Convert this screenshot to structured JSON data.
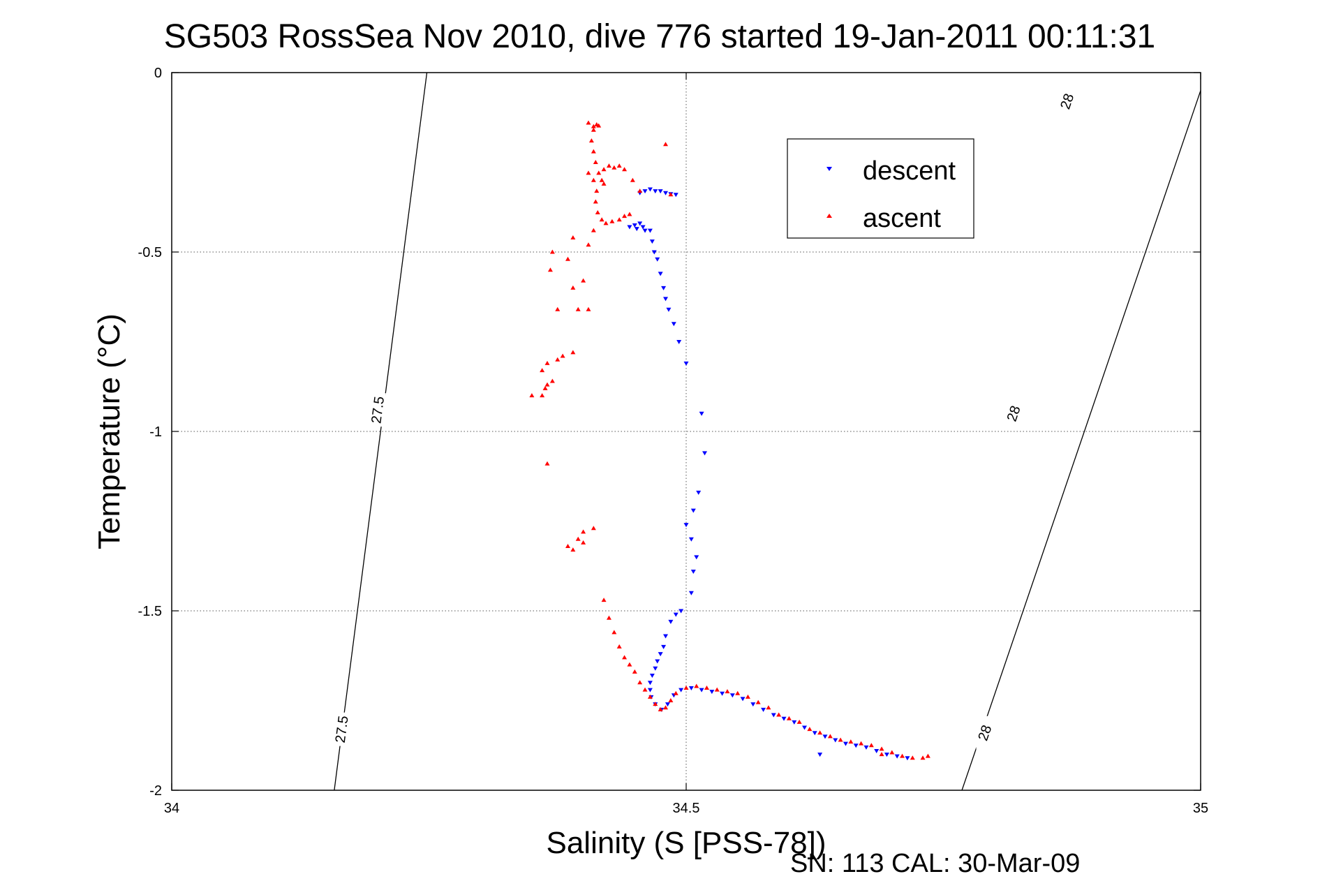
{
  "chart_data": {
    "type": "scatter",
    "title": "SG503 RossSea Nov 2010, dive 776 started 19-Jan-2011 00:11:31",
    "xlabel": "Salinity (S [PSS-78])",
    "ylabel": "Temperature (°C)",
    "xlim": [
      34,
      35
    ],
    "ylim": [
      -2,
      0
    ],
    "xticks": [
      34,
      34.5,
      35
    ],
    "xtick_labels": [
      "34",
      "34.5",
      "35"
    ],
    "yticks": [
      0,
      -0.5,
      -1,
      -1.5,
      -2
    ],
    "ytick_labels": [
      "0",
      "-0.5",
      "-1",
      "-1.5",
      "-2"
    ],
    "grid": true,
    "legend_position": "top-right",
    "footer": "SN: 113  CAL: 30-Mar-09",
    "density_contours": [
      {
        "label": "27.5",
        "points": [
          [
            34.248,
            0
          ],
          [
            34.158,
            -2
          ]
        ],
        "label_positions": [
          [
            34.2,
            -0.94
          ],
          [
            34.165,
            -1.83
          ]
        ]
      },
      {
        "label": "28",
        "points": [
          [
            35.0,
            -0.05
          ],
          [
            34.768,
            -2
          ]
        ],
        "label_positions": [
          [
            34.87,
            -0.08
          ],
          [
            34.818,
            -0.95
          ],
          [
            34.79,
            -1.84
          ]
        ]
      }
    ],
    "series": [
      {
        "name": "descent",
        "color": "#0000ff",
        "marker": "triangle-down",
        "points": [
          [
            34.455,
            -0.335
          ],
          [
            34.46,
            -0.33
          ],
          [
            34.465,
            -0.325
          ],
          [
            34.47,
            -0.33
          ],
          [
            34.475,
            -0.33
          ],
          [
            34.48,
            -0.335
          ],
          [
            34.485,
            -0.338
          ],
          [
            34.49,
            -0.34
          ],
          [
            34.445,
            -0.43
          ],
          [
            34.45,
            -0.425
          ],
          [
            34.452,
            -0.435
          ],
          [
            34.455,
            -0.42
          ],
          [
            34.458,
            -0.43
          ],
          [
            34.46,
            -0.44
          ],
          [
            34.465,
            -0.44
          ],
          [
            34.467,
            -0.47
          ],
          [
            34.469,
            -0.5
          ],
          [
            34.472,
            -0.52
          ],
          [
            34.475,
            -0.56
          ],
          [
            34.478,
            -0.6
          ],
          [
            34.48,
            -0.63
          ],
          [
            34.483,
            -0.66
          ],
          [
            34.488,
            -0.7
          ],
          [
            34.493,
            -0.75
          ],
          [
            34.5,
            -0.81
          ],
          [
            34.515,
            -0.95
          ],
          [
            34.518,
            -1.06
          ],
          [
            34.512,
            -1.17
          ],
          [
            34.507,
            -1.22
          ],
          [
            34.5,
            -1.26
          ],
          [
            34.505,
            -1.3
          ],
          [
            34.51,
            -1.35
          ],
          [
            34.507,
            -1.39
          ],
          [
            34.505,
            -1.45
          ],
          [
            34.495,
            -1.5
          ],
          [
            34.49,
            -1.51
          ],
          [
            34.485,
            -1.53
          ],
          [
            34.48,
            -1.57
          ],
          [
            34.478,
            -1.6
          ],
          [
            34.475,
            -1.62
          ],
          [
            34.472,
            -1.64
          ],
          [
            34.47,
            -1.66
          ],
          [
            34.467,
            -1.68
          ],
          [
            34.465,
            -1.7
          ],
          [
            34.465,
            -1.72
          ],
          [
            34.466,
            -1.74
          ],
          [
            34.47,
            -1.76
          ],
          [
            34.476,
            -1.775
          ],
          [
            34.482,
            -1.76
          ],
          [
            34.488,
            -1.735
          ],
          [
            34.495,
            -1.72
          ],
          [
            34.505,
            -1.715
          ],
          [
            34.515,
            -1.72
          ],
          [
            34.525,
            -1.725
          ],
          [
            34.535,
            -1.73
          ],
          [
            34.545,
            -1.735
          ],
          [
            34.555,
            -1.745
          ],
          [
            34.565,
            -1.76
          ],
          [
            34.575,
            -1.775
          ],
          [
            34.585,
            -1.79
          ],
          [
            34.595,
            -1.8
          ],
          [
            34.605,
            -1.81
          ],
          [
            34.615,
            -1.825
          ],
          [
            34.625,
            -1.84
          ],
          [
            34.635,
            -1.85
          ],
          [
            34.645,
            -1.86
          ],
          [
            34.655,
            -1.87
          ],
          [
            34.665,
            -1.875
          ],
          [
            34.675,
            -1.88
          ],
          [
            34.685,
            -1.89
          ],
          [
            34.695,
            -1.9
          ],
          [
            34.705,
            -1.905
          ],
          [
            34.715,
            -1.91
          ],
          [
            34.63,
            -1.9
          ]
        ]
      },
      {
        "name": "ascent",
        "color": "#ff0000",
        "marker": "triangle-up",
        "points": [
          [
            34.405,
            -0.14
          ],
          [
            34.41,
            -0.15
          ],
          [
            34.413,
            -0.145
          ],
          [
            34.415,
            -0.148
          ],
          [
            34.41,
            -0.16
          ],
          [
            34.408,
            -0.19
          ],
          [
            34.41,
            -0.22
          ],
          [
            34.412,
            -0.25
          ],
          [
            34.415,
            -0.28
          ],
          [
            34.418,
            -0.3
          ],
          [
            34.42,
            -0.31
          ],
          [
            34.41,
            -0.3
          ],
          [
            34.405,
            -0.28
          ],
          [
            34.413,
            -0.33
          ],
          [
            34.412,
            -0.36
          ],
          [
            34.414,
            -0.39
          ],
          [
            34.418,
            -0.41
          ],
          [
            34.422,
            -0.42
          ],
          [
            34.428,
            -0.415
          ],
          [
            34.435,
            -0.41
          ],
          [
            34.44,
            -0.4
          ],
          [
            34.445,
            -0.395
          ],
          [
            34.42,
            -0.27
          ],
          [
            34.425,
            -0.26
          ],
          [
            34.43,
            -0.265
          ],
          [
            34.435,
            -0.26
          ],
          [
            34.44,
            -0.27
          ],
          [
            34.448,
            -0.3
          ],
          [
            34.455,
            -0.33
          ],
          [
            34.48,
            -0.2
          ],
          [
            34.485,
            -0.34
          ],
          [
            34.41,
            -0.44
          ],
          [
            34.405,
            -0.48
          ],
          [
            34.39,
            -0.46
          ],
          [
            34.37,
            -0.5
          ],
          [
            34.368,
            -0.55
          ],
          [
            34.385,
            -0.52
          ],
          [
            34.4,
            -0.58
          ],
          [
            34.39,
            -0.6
          ],
          [
            34.395,
            -0.66
          ],
          [
            34.375,
            -0.66
          ],
          [
            34.405,
            -0.66
          ],
          [
            34.39,
            -0.78
          ],
          [
            34.38,
            -0.79
          ],
          [
            34.375,
            -0.8
          ],
          [
            34.365,
            -0.81
          ],
          [
            34.36,
            -0.83
          ],
          [
            34.37,
            -0.86
          ],
          [
            34.365,
            -0.87
          ],
          [
            34.363,
            -0.88
          ],
          [
            34.36,
            -0.9
          ],
          [
            34.35,
            -0.9
          ],
          [
            34.365,
            -1.09
          ],
          [
            34.395,
            -1.3
          ],
          [
            34.385,
            -1.32
          ],
          [
            34.4,
            -1.28
          ],
          [
            34.41,
            -1.27
          ],
          [
            34.4,
            -1.31
          ],
          [
            34.39,
            -1.33
          ],
          [
            34.42,
            -1.47
          ],
          [
            34.425,
            -1.52
          ],
          [
            34.43,
            -1.56
          ],
          [
            34.435,
            -1.6
          ],
          [
            34.44,
            -1.63
          ],
          [
            34.445,
            -1.65
          ],
          [
            34.45,
            -1.67
          ],
          [
            34.455,
            -1.7
          ],
          [
            34.46,
            -1.72
          ],
          [
            34.465,
            -1.74
          ],
          [
            34.47,
            -1.76
          ],
          [
            34.475,
            -1.775
          ],
          [
            34.48,
            -1.77
          ],
          [
            34.485,
            -1.75
          ],
          [
            34.49,
            -1.73
          ],
          [
            34.5,
            -1.715
          ],
          [
            34.51,
            -1.71
          ],
          [
            34.52,
            -1.715
          ],
          [
            34.53,
            -1.72
          ],
          [
            34.54,
            -1.725
          ],
          [
            34.55,
            -1.73
          ],
          [
            34.56,
            -1.74
          ],
          [
            34.57,
            -1.755
          ],
          [
            34.58,
            -1.77
          ],
          [
            34.59,
            -1.79
          ],
          [
            34.6,
            -1.8
          ],
          [
            34.61,
            -1.81
          ],
          [
            34.62,
            -1.83
          ],
          [
            34.63,
            -1.84
          ],
          [
            34.64,
            -1.85
          ],
          [
            34.65,
            -1.86
          ],
          [
            34.66,
            -1.865
          ],
          [
            34.67,
            -1.87
          ],
          [
            34.68,
            -1.875
          ],
          [
            34.69,
            -1.885
          ],
          [
            34.7,
            -1.895
          ],
          [
            34.71,
            -1.905
          ],
          [
            34.72,
            -1.91
          ],
          [
            34.73,
            -1.91
          ],
          [
            34.735,
            -1.905
          ],
          [
            34.69,
            -1.9
          ]
        ]
      }
    ]
  }
}
